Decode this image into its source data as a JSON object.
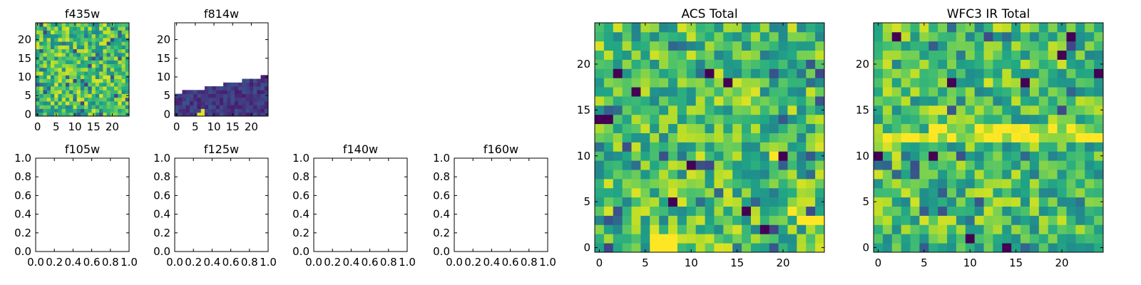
{
  "chart_data": [
    {
      "type": "heatmap",
      "title": "f435w",
      "xticks": [
        "0",
        "5",
        "10",
        "15",
        "20"
      ],
      "yticks": [
        "0",
        "5",
        "10",
        "15",
        "20"
      ],
      "xlim": [
        -0.5,
        24.5
      ],
      "ylim": [
        -0.5,
        24.5
      ],
      "grid_size": [
        25,
        25
      ],
      "colormap": "viridis",
      "masked_region": "none",
      "note_values": "per-pixel intensities are noise-like; colormap values estimated",
      "seed": 11
    },
    {
      "type": "heatmap",
      "title": "f814w",
      "xticks": [
        "0",
        "5",
        "10",
        "15",
        "20"
      ],
      "yticks": [
        "0",
        "5",
        "10",
        "15",
        "20"
      ],
      "xlim": [
        -0.5,
        24.5
      ],
      "ylim": [
        -0.5,
        24.5
      ],
      "grid_size": [
        25,
        25
      ],
      "colormap": "viridis",
      "coverage_top_row_per_column": [
        5,
        5,
        6,
        6,
        6,
        6,
        6,
        6,
        7,
        7,
        7,
        7,
        7,
        8,
        8,
        8,
        8,
        8,
        9,
        9,
        9,
        9,
        9,
        10,
        10
      ],
      "bright_pixels": [
        [
          6,
          0
        ],
        [
          7,
          0
        ],
        [
          7,
          1
        ]
      ],
      "seed": 23
    },
    {
      "type": "heatmap",
      "title": "f105w",
      "xticks": [
        "0.0",
        "0.2",
        "0.4",
        "0.6",
        "0.8",
        "1.0"
      ],
      "yticks": [
        "0.0",
        "0.2",
        "0.4",
        "0.6",
        "0.8",
        "1.0"
      ],
      "xlim": [
        0,
        1
      ],
      "ylim": [
        0,
        1
      ],
      "empty": true
    },
    {
      "type": "heatmap",
      "title": "f125w",
      "xticks": [
        "0.0",
        "0.2",
        "0.4",
        "0.6",
        "0.8",
        "1.0"
      ],
      "yticks": [
        "0.0",
        "0.2",
        "0.4",
        "0.6",
        "0.8",
        "1.0"
      ],
      "xlim": [
        0,
        1
      ],
      "ylim": [
        0,
        1
      ],
      "empty": true
    },
    {
      "type": "heatmap",
      "title": "f140w",
      "xticks": [
        "0.0",
        "0.2",
        "0.4",
        "0.6",
        "0.8",
        "1.0"
      ],
      "yticks": [
        "0.0",
        "0.2",
        "0.4",
        "0.6",
        "0.8",
        "1.0"
      ],
      "xlim": [
        0,
        1
      ],
      "ylim": [
        0,
        1
      ],
      "empty": true
    },
    {
      "type": "heatmap",
      "title": "f160w",
      "xticks": [
        "0.0",
        "0.2",
        "0.4",
        "0.6",
        "0.8",
        "1.0"
      ],
      "yticks": [
        "0.0",
        "0.2",
        "0.4",
        "0.6",
        "0.8",
        "1.0"
      ],
      "xlim": [
        0,
        1
      ],
      "ylim": [
        0,
        1
      ],
      "empty": true
    },
    {
      "type": "heatmap",
      "title": "ACS Total",
      "xticks": [
        "0",
        "5",
        "10",
        "15",
        "20"
      ],
      "yticks": [
        "0",
        "5",
        "10",
        "15",
        "20"
      ],
      "xlim": [
        -0.5,
        24.5
      ],
      "ylim": [
        -0.5,
        24.5
      ],
      "grid_size": [
        25,
        25
      ],
      "colormap": "viridis",
      "bright_pixels": [
        [
          6,
          0
        ],
        [
          7,
          0
        ],
        [
          8,
          0
        ],
        [
          6,
          1
        ],
        [
          7,
          1
        ],
        [
          8,
          1
        ],
        [
          19,
          10
        ],
        [
          21,
          4
        ],
        [
          22,
          3
        ],
        [
          23,
          3
        ],
        [
          24,
          3
        ]
      ],
      "dark_pixels": [
        [
          0,
          14
        ],
        [
          1,
          14
        ],
        [
          14,
          18
        ],
        [
          8,
          5
        ],
        [
          12,
          19
        ],
        [
          16,
          4
        ],
        [
          2,
          19
        ],
        [
          4,
          17
        ],
        [
          20,
          10
        ],
        [
          10,
          9
        ],
        [
          18,
          2
        ]
      ],
      "seed": 37
    },
    {
      "type": "heatmap",
      "title": "WFC3 IR Total",
      "xticks": [
        "0",
        "5",
        "10",
        "15",
        "20"
      ],
      "yticks": [
        "0",
        "5",
        "10",
        "15",
        "20"
      ],
      "xlim": [
        -0.5,
        24.5
      ],
      "ylim": [
        -0.5,
        24.5
      ],
      "grid_size": [
        25,
        25
      ],
      "colormap": "viridis",
      "bright_band_rows": [
        12,
        13
      ],
      "dark_pixels": [
        [
          0,
          10
        ],
        [
          6,
          10
        ],
        [
          2,
          23
        ],
        [
          14,
          0
        ],
        [
          10,
          1
        ],
        [
          21,
          23
        ],
        [
          24,
          19
        ],
        [
          8,
          18
        ],
        [
          16,
          18
        ],
        [
          20,
          21
        ]
      ],
      "seed": 53
    }
  ]
}
